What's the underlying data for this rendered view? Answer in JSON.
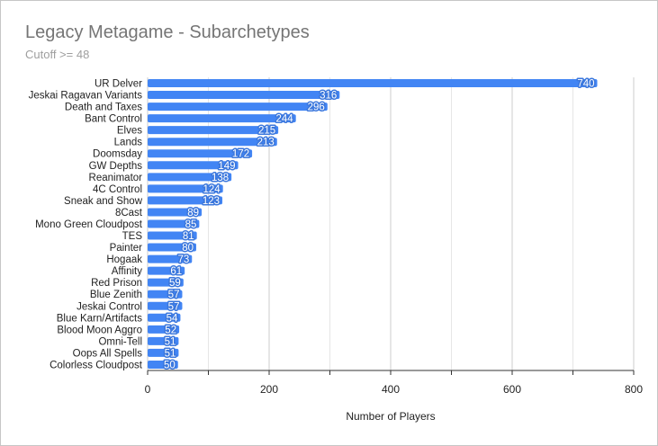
{
  "chart_data": {
    "type": "bar",
    "orientation": "horizontal",
    "title": "Legacy Metagame - Subarchetypes",
    "subtitle": "Cutoff >= 48",
    "xlabel": "Number of Players",
    "ylabel": "",
    "xlim": [
      0,
      800
    ],
    "x_ticks": [
      0,
      200,
      400,
      600,
      800
    ],
    "grid": true,
    "legend": "none",
    "bar_color": "#4285f4",
    "categories": [
      "UR Delver",
      "Jeskai Ragavan Variants",
      "Death and Taxes",
      "Bant Control",
      "Elves",
      "Lands",
      "Doomsday",
      "GW Depths",
      "Reanimator",
      "4C Control",
      "Sneak and Show",
      "8Cast",
      "Mono Green Cloudpost",
      "TES",
      "Painter",
      "Hogaak",
      "Affinity",
      "Red Prison",
      "Blue Zenith",
      "Jeskai Control",
      "Blue Karn/Artifacts",
      "Blood Moon Aggro",
      "Omni-Tell",
      "Oops All Spells",
      "Colorless Cloudpost"
    ],
    "values": [
      740,
      316,
      296,
      244,
      215,
      213,
      172,
      149,
      138,
      124,
      123,
      89,
      85,
      81,
      80,
      73,
      61,
      59,
      57,
      57,
      54,
      52,
      51,
      51,
      50
    ]
  }
}
